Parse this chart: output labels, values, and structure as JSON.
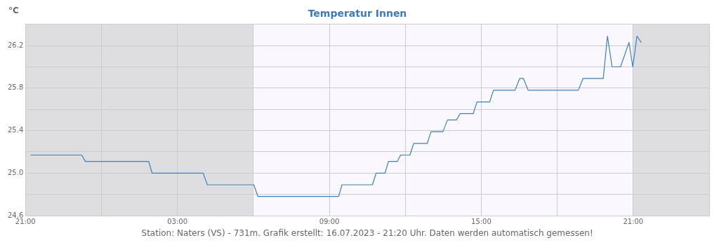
{
  "chart_data": {
    "type": "line",
    "title": "Temperatur Innen",
    "ylabel": "°C",
    "x": [
      "2023-07-15T21:12",
      "2023-07-15T23:13",
      "2023-07-15T23:22",
      "2023-07-16T01:52",
      "2023-07-16T02:00",
      "2023-07-16T04:01",
      "2023-07-16T04:11",
      "2023-07-16T06:01",
      "2023-07-16T06:11",
      "2023-07-16T09:22",
      "2023-07-16T09:30",
      "2023-07-16T10:42",
      "2023-07-16T10:51",
      "2023-07-16T11:12",
      "2023-07-16T11:20",
      "2023-07-16T11:41",
      "2023-07-16T11:49",
      "2023-07-16T12:11",
      "2023-07-16T12:20",
      "2023-07-16T12:52",
      "2023-07-16T13:01",
      "2023-07-16T13:29",
      "2023-07-16T13:40",
      "2023-07-16T14:01",
      "2023-07-16T14:10",
      "2023-07-16T14:41",
      "2023-07-16T14:50",
      "2023-07-16T15:20",
      "2023-07-16T15:29",
      "2023-07-16T16:20",
      "2023-07-16T16:31",
      "2023-07-16T16:40",
      "2023-07-16T16:51",
      "2023-07-16T18:50",
      "2023-07-16T19:01",
      "2023-07-16T19:49",
      "2023-07-16T19:59",
      "2023-07-16T20:10",
      "2023-07-16T20:30",
      "2023-07-16T20:50",
      "2023-07-16T20:59",
      "2023-07-16T21:09",
      "2023-07-16T21:19"
    ],
    "series": [
      {
        "color": "#3a7fbf",
        "values": [
          25.17,
          25.17,
          25.11,
          25.11,
          25.0,
          25.0,
          24.89,
          24.89,
          24.78,
          24.78,
          24.89,
          24.89,
          25.0,
          25.0,
          25.11,
          25.11,
          25.17,
          25.17,
          25.28,
          25.28,
          25.39,
          25.39,
          25.5,
          25.5,
          25.56,
          25.56,
          25.67,
          25.67,
          25.78,
          25.78,
          25.89,
          25.89,
          25.78,
          25.78,
          25.89,
          25.89,
          26.29,
          26.0,
          26.0,
          26.23,
          26.0,
          26.29,
          26.23
        ]
      }
    ],
    "xlim": [
      "2023-07-15T21:00",
      "2023-07-17T00:00"
    ],
    "xticks": [
      {
        "value": "2023-07-15T21:00",
        "label": "21:00"
      },
      {
        "value": "2023-07-16T00:00",
        "label": null
      },
      {
        "value": "2023-07-16T03:00",
        "label": "03:00"
      },
      {
        "value": "2023-07-16T06:00",
        "label": null
      },
      {
        "value": "2023-07-16T09:00",
        "label": "09:00"
      },
      {
        "value": "2023-07-16T12:00",
        "label": null
      },
      {
        "value": "2023-07-16T15:00",
        "label": "15:00"
      },
      {
        "value": "2023-07-16T18:00",
        "label": null
      },
      {
        "value": "2023-07-16T21:00",
        "label": "21:00"
      },
      {
        "value": "2023-07-17T00:00",
        "label": null
      }
    ],
    "ylim": [
      24.6,
      26.4
    ],
    "yticks": [
      24.6,
      {
        "value": 24.8,
        "label": null
      },
      {
        "value": 25.0,
        "label": "25.0"
      },
      {
        "value": 25.2,
        "label": null
      },
      25.4,
      {
        "value": 25.6,
        "label": null
      },
      25.8,
      {
        "value": 26.0,
        "label": null
      },
      26.2,
      {
        "value": 26.4,
        "label": null
      }
    ],
    "bands": [
      {
        "axis": "x",
        "from": "2023-07-15T21:00",
        "to": "2023-07-16T06:00",
        "color": "#dedee0"
      },
      {
        "axis": "x",
        "from": "2023-07-16T21:00",
        "to": "2023-07-17T00:00",
        "color": "#dedee0"
      }
    ],
    "grid": true,
    "legend": false,
    "marker": "none",
    "line_style": "solid",
    "annotations": [
      "Station: Naters (VS) - 731m. Grafik erstellt: 16.07.2023 - 21:20 Uhr. Daten werden automatisch gemessen!"
    ]
  }
}
